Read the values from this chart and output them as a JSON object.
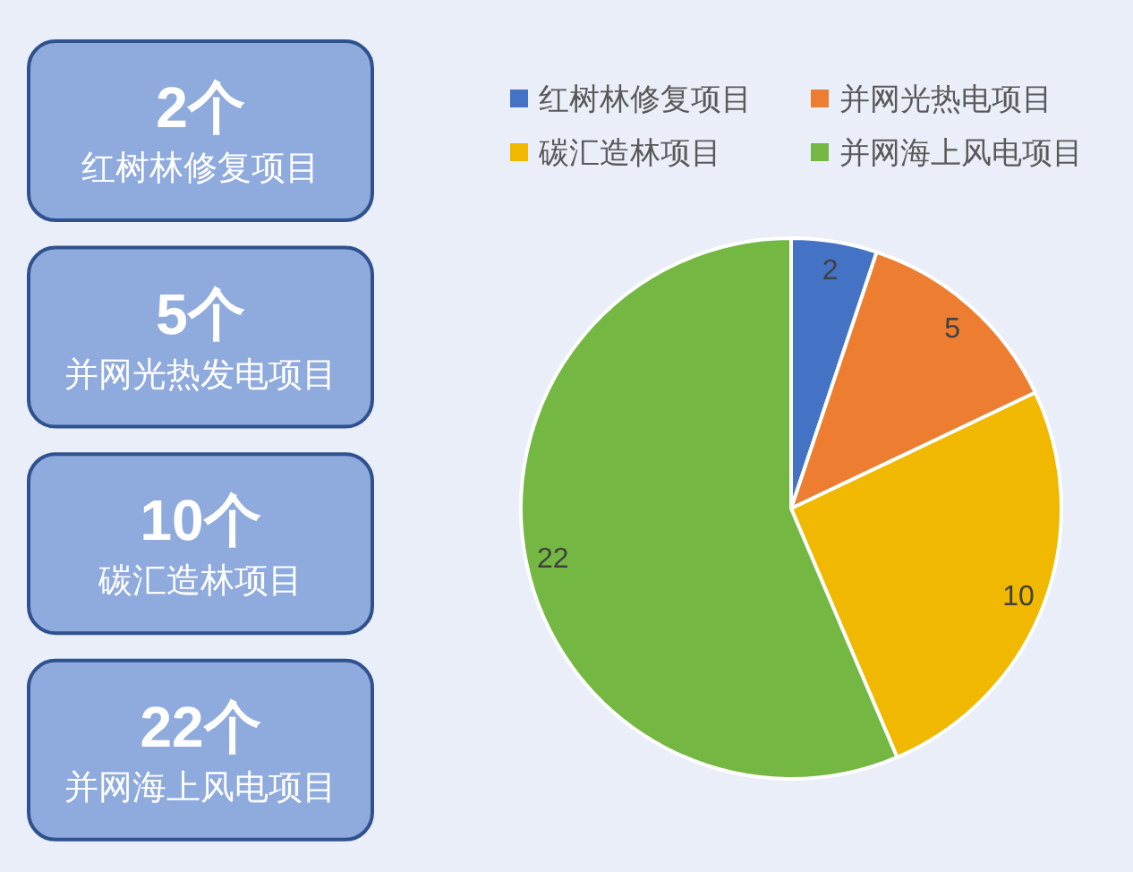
{
  "chart_data": [
    {
      "type": "other",
      "annotations": [
        "2个",
        "红树林修复项目",
        "5个",
        "并网光热发电项目",
        "10个",
        "碳汇造林项目",
        "22个",
        "并网海上风电项目"
      ]
    },
    {
      "type": "pie",
      "categories": [
        "红树林修复项目",
        "并网光热电项目",
        "碳汇造林项目",
        "并网海上风电项目"
      ],
      "values": [
        2,
        5,
        10,
        22
      ],
      "colors": [
        "#4472c4",
        "#ed7d31",
        "#f1b800",
        "#74b843"
      ],
      "data_labels": true,
      "legend": "top"
    }
  ]
}
